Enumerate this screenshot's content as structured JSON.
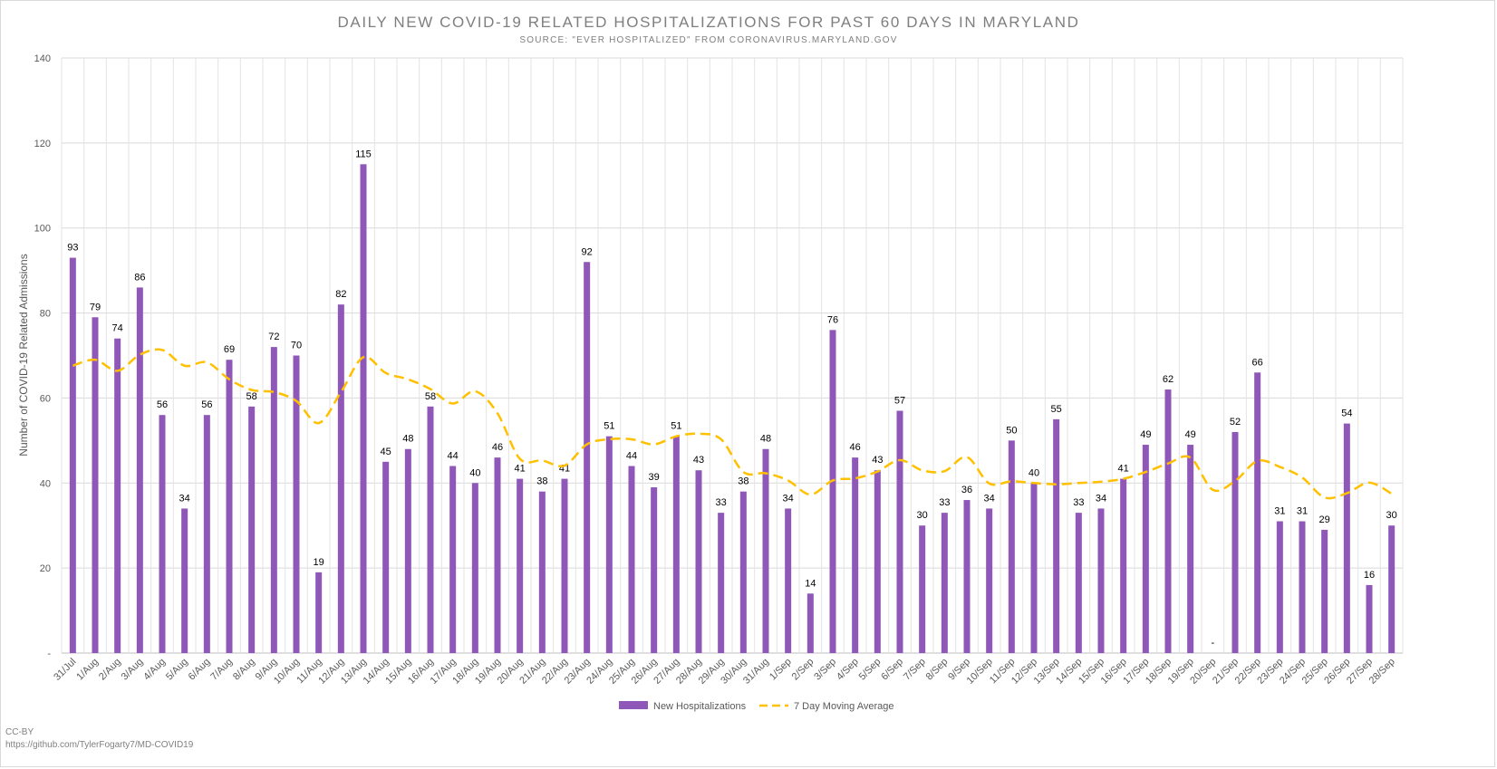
{
  "chart_data": {
    "type": "bar",
    "title": "DAILY NEW COVID-19 RELATED HOSPITALIZATIONS FOR PAST 60 DAYS IN MARYLAND",
    "subtitle": "SOURCE: \"EVER HOSPITALIZED\" FROM CORONAVIRUS.MARYLAND.GOV",
    "xlabel": "",
    "ylabel": "Number of COVID-19 Related Admissions",
    "ylim": [
      0,
      140
    ],
    "yticks": [
      0,
      20,
      40,
      60,
      80,
      100,
      120,
      140
    ],
    "ytick_labels": [
      "-",
      "20",
      "40",
      "60",
      "80",
      "100",
      "120",
      "140"
    ],
    "grid": true,
    "legend_position": "bottom",
    "categories": [
      "31/Jul",
      "1/Aug",
      "2/Aug",
      "3/Aug",
      "4/Aug",
      "5/Aug",
      "6/Aug",
      "7/Aug",
      "8/Aug",
      "9/Aug",
      "10/Aug",
      "11/Aug",
      "12/Aug",
      "13/Aug",
      "14/Aug",
      "15/Aug",
      "16/Aug",
      "17/Aug",
      "18/Aug",
      "19/Aug",
      "20/Aug",
      "21/Aug",
      "22/Aug",
      "23/Aug",
      "24/Aug",
      "25/Aug",
      "26/Aug",
      "27/Aug",
      "28/Aug",
      "29/Aug",
      "30/Aug",
      "31/Aug",
      "1/Sep",
      "2/Sep",
      "3/Sep",
      "4/Sep",
      "5/Sep",
      "6/Sep",
      "7/Sep",
      "8/Sep",
      "9/Sep",
      "10/Sep",
      "11/Sep",
      "12/Sep",
      "13/Sep",
      "14/Sep",
      "15/Sep",
      "16/Sep",
      "17/Sep",
      "18/Sep",
      "19/Sep",
      "20/Sep",
      "21/Sep",
      "22/Sep",
      "23/Sep",
      "24/Sep",
      "25/Sep",
      "26/Sep",
      "27/Sep",
      "28/Sep"
    ],
    "series": [
      {
        "name": "New Hospitalizations",
        "kind": "bar",
        "color": "#8e57b8",
        "values": [
          93,
          79,
          74,
          86,
          56,
          34,
          56,
          69,
          58,
          72,
          70,
          19,
          82,
          115,
          45,
          48,
          58,
          44,
          40,
          46,
          41,
          38,
          41,
          92,
          51,
          44,
          39,
          51,
          43,
          33,
          38,
          48,
          34,
          14,
          76,
          46,
          43,
          57,
          30,
          33,
          36,
          34,
          50,
          40,
          55,
          33,
          34,
          41,
          49,
          62,
          49,
          0,
          52,
          66,
          31,
          31,
          29,
          54,
          16,
          30
        ],
        "data_labels": [
          "93",
          "79",
          "74",
          "86",
          "56",
          "34",
          "56",
          "69",
          "58",
          "72",
          "70",
          "19",
          "82",
          "115",
          "45",
          "48",
          "58",
          "44",
          "40",
          "46",
          "41",
          "38",
          "41",
          "92",
          "51",
          "44",
          "39",
          "51",
          "43",
          "33",
          "38",
          "48",
          "34",
          "14",
          "76",
          "46",
          "43",
          "57",
          "30",
          "33",
          "36",
          "34",
          "50",
          "40",
          "55",
          "33",
          "34",
          "41",
          "49",
          "62",
          "49",
          "-",
          "52",
          "66",
          "31",
          "31",
          "29",
          "54",
          "16",
          "30"
        ]
      },
      {
        "name": "7 Day Moving Average",
        "kind": "line",
        "style": "dashed",
        "color": "#ffc000",
        "values": [
          67.6,
          69.0,
          66.4,
          70.2,
          71.3,
          67.6,
          68.4,
          64.4,
          61.9,
          61.4,
          59.3,
          54.1,
          61.4,
          69.6,
          65.9,
          64.4,
          62.1,
          58.7,
          61.6,
          56.4,
          45.7,
          45.3,
          44.1,
          49.1,
          50.3,
          50.3,
          49.1,
          51.0,
          51.6,
          50.3,
          42.6,
          42.3,
          40.6,
          37.3,
          40.6,
          41.1,
          42.7,
          45.4,
          43.0,
          42.8,
          46.1,
          39.9,
          40.4,
          40.0,
          39.7,
          40.0,
          40.3,
          41.0,
          42.6,
          44.6,
          46.0,
          38.4,
          40.5,
          45.2,
          43.8,
          41.3,
          36.6,
          37.6,
          40.1,
          37.5
        ]
      }
    ]
  },
  "credits": {
    "license": "CC-BY",
    "source_url": "https://github.com/TylerFogarty7/MD-COVID19"
  }
}
